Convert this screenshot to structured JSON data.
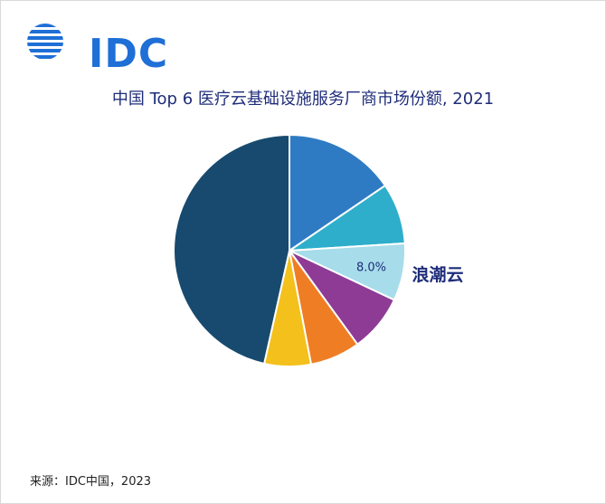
{
  "logo": {
    "text": "IDC",
    "color": "#1f6fd6"
  },
  "title": "中国 Top 6 医疗云基础设施服务厂商市场份额, 2021",
  "source": "来源：IDC中国，2023",
  "chart_data": {
    "type": "pie",
    "title": "中国 Top 6 医疗云基础设施服务厂商市场份额, 2021",
    "unit": "%",
    "slices": [
      {
        "value": 15.5,
        "color": "#2e7bc4",
        "label": ""
      },
      {
        "value": 8.5,
        "color": "#2eaecb",
        "label": ""
      },
      {
        "value": 8.0,
        "color": "#a7dcea",
        "label": "8.0%",
        "callout": "浪潮云"
      },
      {
        "value": 8.0,
        "color": "#8e3b96",
        "label": ""
      },
      {
        "value": 7.0,
        "color": "#ef7d23",
        "label": ""
      },
      {
        "value": 6.5,
        "color": "#f3c01c",
        "label": ""
      },
      {
        "value": 46.5,
        "color": "#174a6e",
        "label": ""
      }
    ]
  }
}
